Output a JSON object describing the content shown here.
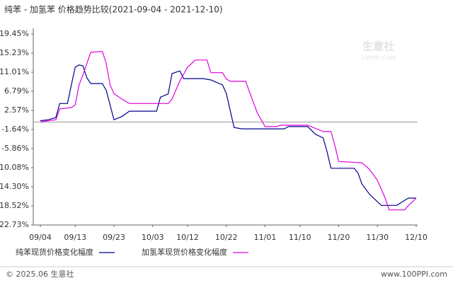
{
  "chart_data": {
    "type": "line",
    "title": "纯苯 - 加氢苯 价格趋势比较(2021-09-04 - 2021-12-10)",
    "watermark": "生意社",
    "watermark_sub": "100PPI.COM",
    "footer_left": "© 2025.06 生意社",
    "footer_right": "www.100PPI.com",
    "xlim": [
      "2021-09-04",
      "2021-12-10"
    ],
    "xticks": [
      {
        "value": "2021-09-04",
        "label": "09/04"
      },
      {
        "value": "2021-09-13",
        "label": "09/13"
      },
      {
        "value": "2021-09-23",
        "label": "09/23"
      },
      {
        "value": "2021-10-03",
        "label": "10/03"
      },
      {
        "value": "2021-10-12",
        "label": "10/12"
      },
      {
        "value": "2021-10-22",
        "label": "10/22"
      },
      {
        "value": "2021-11-01",
        "label": "11/01"
      },
      {
        "value": "2021-11-10",
        "label": "11/10"
      },
      {
        "value": "2021-11-20",
        "label": "11/20"
      },
      {
        "value": "2021-11-30",
        "label": "11/30"
      },
      {
        "value": "2021-12-10",
        "label": "12/10"
      }
    ],
    "ylim": [
      -22.73,
      19.45
    ],
    "yticks": [
      {
        "value": 19.45,
        "label": "19.45%"
      },
      {
        "value": 15.23,
        "label": "15.23%"
      },
      {
        "value": 11.01,
        "label": "11.01%"
      },
      {
        "value": 6.79,
        "label": "6.79%"
      },
      {
        "value": 2.57,
        "label": "2.57%"
      },
      {
        "value": -1.64,
        "label": "-1.64%"
      },
      {
        "value": -5.86,
        "label": "-5.86%"
      },
      {
        "value": -10.08,
        "label": "-10.08%"
      },
      {
        "value": -14.3,
        "label": "-14.30%"
      },
      {
        "value": -18.52,
        "label": "-18.52%"
      },
      {
        "value": -22.73,
        "label": "-22.73%"
      }
    ],
    "tick_label_colors": {
      "positive": "#d00000",
      "negative": "#009000"
    },
    "series": [
      {
        "name": "纯苯现货价格变化幅度",
        "color": "#00008b",
        "x": [
          "2021-09-04",
          "2021-09-06",
          "2021-09-08",
          "2021-09-09",
          "2021-09-11",
          "2021-09-12",
          "2021-09-13",
          "2021-09-14",
          "2021-09-15",
          "2021-09-16",
          "2021-09-17",
          "2021-09-20",
          "2021-09-21",
          "2021-09-22",
          "2021-09-23",
          "2021-09-25",
          "2021-09-27",
          "2021-10-04",
          "2021-10-05",
          "2021-10-07",
          "2021-10-08",
          "2021-10-10",
          "2021-10-11",
          "2021-10-16",
          "2021-10-18",
          "2021-10-21",
          "2021-10-22",
          "2021-10-24",
          "2021-10-26",
          "2021-11-06",
          "2021-11-07",
          "2021-11-12",
          "2021-11-14",
          "2021-11-16",
          "2021-11-17",
          "2021-11-18",
          "2021-11-24",
          "2021-11-25",
          "2021-11-26",
          "2021-11-28",
          "2021-11-30",
          "2021-12-01",
          "2021-12-05",
          "2021-12-07",
          "2021-12-08",
          "2021-12-10"
        ],
        "values": [
          0.3,
          0.5,
          1.0,
          4.1,
          4.1,
          8.2,
          12.1,
          12.6,
          12.4,
          9.8,
          8.5,
          8.5,
          7.0,
          3.8,
          0.5,
          1.2,
          2.4,
          2.4,
          5.5,
          6.2,
          10.7,
          11.3,
          9.6,
          9.6,
          9.3,
          8.2,
          6.3,
          -1.2,
          -1.5,
          -1.5,
          -1.0,
          -1.0,
          -2.7,
          -3.5,
          -6.6,
          -10.2,
          -10.2,
          -11.3,
          -13.7,
          -16.0,
          -17.6,
          -18.4,
          -18.4,
          -17.3,
          -16.8,
          -16.8
        ]
      },
      {
        "name": "加氢苯现货价格变化幅度",
        "color": "#e000e0",
        "x": [
          "2021-09-04",
          "2021-09-06",
          "2021-09-08",
          "2021-09-09",
          "2021-09-12",
          "2021-09-13",
          "2021-09-14",
          "2021-09-15",
          "2021-09-17",
          "2021-09-20",
          "2021-09-21",
          "2021-09-22",
          "2021-09-23",
          "2021-09-25",
          "2021-09-27",
          "2021-10-07",
          "2021-10-08",
          "2021-10-10",
          "2021-10-12",
          "2021-10-14",
          "2021-10-17",
          "2021-10-18",
          "2021-10-21",
          "2021-10-22",
          "2021-10-23",
          "2021-10-27",
          "2021-10-28",
          "2021-10-30",
          "2021-11-01",
          "2021-11-04",
          "2021-11-05",
          "2021-11-12",
          "2021-11-16",
          "2021-11-18",
          "2021-11-19",
          "2021-11-20",
          "2021-11-26",
          "2021-11-28",
          "2021-11-30",
          "2021-12-02",
          "2021-12-03",
          "2021-12-07",
          "2021-12-08",
          "2021-12-10"
        ],
        "values": [
          0,
          0.3,
          0.5,
          2.9,
          3.2,
          3.8,
          8.2,
          10.4,
          15.4,
          15.6,
          12.9,
          8.2,
          6.3,
          5.1,
          4.1,
          4.1,
          5.1,
          9.1,
          12.1,
          13.7,
          13.7,
          10.9,
          10.9,
          9.5,
          9.0,
          9.0,
          6.6,
          2.0,
          -1.0,
          -1.0,
          -0.7,
          -0.7,
          -2.1,
          -2.1,
          -5.1,
          -8.7,
          -9.0,
          -10.5,
          -12.9,
          -16.8,
          -19.4,
          -19.4,
          -18.4,
          -16.8
        ]
      }
    ]
  }
}
